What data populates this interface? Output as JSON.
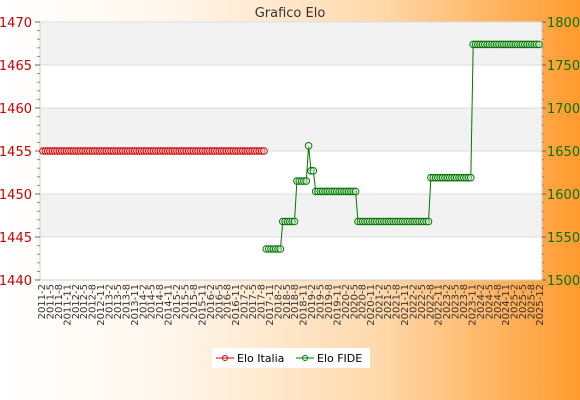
{
  "chart_data": {
    "type": "line",
    "title": "Grafico Elo",
    "xlabel": "",
    "ylabel": "",
    "y_left": {
      "ylim": [
        1440,
        1470
      ],
      "ticks": [
        1440,
        1445,
        1450,
        1455,
        1460,
        1465,
        1470
      ],
      "color": "#cc0000"
    },
    "y_right": {
      "ylim": [
        1500,
        1800
      ],
      "ticks": [
        1500,
        1550,
        1600,
        1650,
        1700,
        1750,
        1800
      ],
      "color": "#007700"
    },
    "x_labels": [
      "2011-2",
      "2011-5",
      "2011-8",
      "2011-11",
      "2012-2",
      "2012-5",
      "2012-8",
      "2012-11",
      "2013-2",
      "2013-5",
      "2013-8",
      "2013-11",
      "2014-2",
      "2014-5",
      "2014-8",
      "2014-11",
      "2015-2",
      "2015-5",
      "2015-8",
      "2015-11",
      "2016-2",
      "2016-5",
      "2016-8",
      "2016-11",
      "2017-2",
      "2017-5",
      "2017-8",
      "2017-11",
      "2018-2",
      "2018-5",
      "2018-8",
      "2018-11",
      "2019-2",
      "2019-5",
      "2019-8",
      "2019-11",
      "2020-2",
      "2020-5",
      "2020-8",
      "2020-11",
      "2021-2",
      "2021-5",
      "2021-8",
      "2021-11",
      "2022-2",
      "2022-5",
      "2022-8",
      "2022-11",
      "2023-2",
      "2023-5",
      "2023-8",
      "2023-11",
      "2024-2",
      "2024-5",
      "2024-8",
      "2024-11",
      "2025-2",
      "2025-5",
      "2025-8",
      "2025-12"
    ],
    "grid": true,
    "legend_position": "bottom",
    "series": [
      {
        "name": "Elo Italia",
        "axis": "left",
        "color": "#cc0000",
        "start_index": 0,
        "values": [
          1455,
          1455,
          1455,
          1455,
          1455,
          1455,
          1455,
          1455,
          1455,
          1455,
          1455,
          1455,
          1455,
          1455,
          1455,
          1455,
          1455,
          1455,
          1455,
          1455,
          1455,
          1455,
          1455,
          1455,
          1455,
          1455,
          1455,
          1455,
          1455,
          1455,
          1455,
          1455,
          1455,
          1455,
          1455,
          1455,
          1455,
          1455,
          1455,
          1455,
          1455,
          1455,
          1455,
          1455,
          1455,
          1455,
          1455,
          1455,
          1455,
          1455,
          1455,
          1455,
          1455,
          1455,
          1455,
          1455,
          1455,
          1455,
          1455,
          1455,
          1455,
          1455,
          1455,
          1455,
          1455,
          1455,
          1455,
          1455,
          1455,
          1455,
          1455,
          1455,
          1455,
          1455,
          1455,
          1455,
          1455,
          1455,
          1455,
          1455,
          1455,
          1455,
          1455,
          1455,
          1455,
          1455,
          1455,
          1455,
          1455,
          1455,
          1455,
          1455,
          1455,
          1455,
          1455
        ]
      },
      {
        "name": "Elo FIDE",
        "axis": "right",
        "color": "#007700",
        "start_index": 95,
        "values": [
          1536,
          1536,
          1536,
          1536,
          1536,
          1536,
          1536,
          1568,
          1568,
          1568,
          1568,
          1568,
          1568,
          1615,
          1615,
          1615,
          1615,
          1615,
          1656,
          1627,
          1627,
          1603,
          1603,
          1603,
          1603,
          1603,
          1603,
          1603,
          1603,
          1603,
          1603,
          1603,
          1603,
          1603,
          1603,
          1603,
          1603,
          1603,
          1603,
          1568,
          1568,
          1568,
          1568,
          1568,
          1568,
          1568,
          1568,
          1568,
          1568,
          1568,
          1568,
          1568,
          1568,
          1568,
          1568,
          1568,
          1568,
          1568,
          1568,
          1568,
          1568,
          1568,
          1568,
          1568,
          1568,
          1568,
          1568,
          1568,
          1568,
          1568,
          1619,
          1619,
          1619,
          1619,
          1619,
          1619,
          1619,
          1619,
          1619,
          1619,
          1619,
          1619,
          1619,
          1619,
          1619,
          1619,
          1619,
          1619,
          1774,
          1774,
          1774,
          1774,
          1774,
          1774,
          1774,
          1774,
          1774,
          1774,
          1774,
          1774,
          1774,
          1774,
          1774,
          1774,
          1774,
          1774,
          1774,
          1774,
          1774,
          1774,
          1774,
          1774,
          1774,
          1774,
          1774,
          1774,
          1774
        ]
      }
    ]
  }
}
